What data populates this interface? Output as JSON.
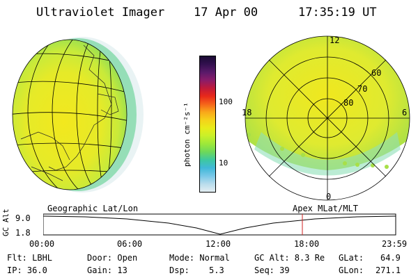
{
  "header": {
    "instrument": "Ultraviolet Imager",
    "date": "17 Apr 00",
    "time": "17:35:19 UT"
  },
  "colorbar": {
    "unit_label": "photon cm⁻²s⁻¹",
    "tick_100": "100",
    "tick_10": "10",
    "colors": [
      "#1a0a33",
      "#33104f",
      "#5a1a6a",
      "#8a1c6a",
      "#c01a3a",
      "#e8281a",
      "#f5641a",
      "#f9a81a",
      "#f5d21a",
      "#e8ec1a",
      "#c8f02a",
      "#9ce83a",
      "#6ed85a",
      "#3ec8a0",
      "#40b8d8",
      "#78c8e8",
      "#b8dcec",
      "#e4eef2"
    ]
  },
  "left_map": {
    "panel_label": "Geographic Lat/Lon"
  },
  "right_map": {
    "panel_label": "Apex MLat/MLT",
    "mlt_12": "12",
    "mlt_18": "18",
    "mlt_6": "6",
    "mlt_0": "0",
    "lat_60": "60",
    "lat_70": "70",
    "lat_80": "80"
  },
  "altitude_plot": {
    "axis_label": "GC Alt",
    "y_top": "9.0",
    "y_bottom": "1.8",
    "x_ticks": [
      "00:00",
      "06:00",
      "12:00",
      "18:00",
      "23:59"
    ],
    "marker_color": "#d02020"
  },
  "footer": {
    "flt": "Flt: LBHL",
    "ip": "IP: 36.0",
    "door": "Door: Open",
    "gain": "Gain: 13",
    "mode": "Mode: Normal",
    "dsp_label": "Dsp:",
    "dsp_value": "5.3",
    "gc_alt": "GC Alt: 8.3 Re",
    "seq": "Seq: 39",
    "glat_label": "GLat:",
    "glat_value": "64.9",
    "glon_label": "GLon:",
    "glon_value": "271.1"
  }
}
